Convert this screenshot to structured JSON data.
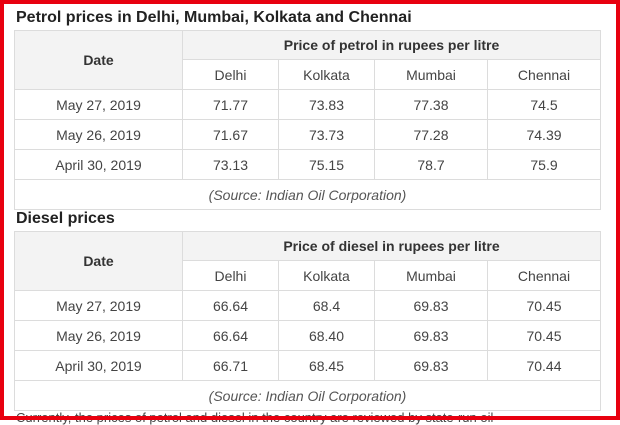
{
  "petrol": {
    "title": "Petrol prices in Delhi, Mumbai, Kolkata and Chennai",
    "date_header": "Date",
    "group_header": "Price of petrol in rupees per litre",
    "cities": [
      "Delhi",
      "Kolkata",
      "Mumbai",
      "Chennai"
    ],
    "rows": [
      {
        "date": "May 27, 2019",
        "values": [
          "71.77",
          "73.83",
          "77.38",
          "74.5"
        ]
      },
      {
        "date": "May 26, 2019",
        "values": [
          "71.67",
          "73.73",
          "77.28",
          "74.39"
        ]
      },
      {
        "date": "April 30, 2019",
        "values": [
          "73.13",
          "75.15",
          "78.7",
          "75.9"
        ]
      }
    ],
    "source": "(Source: Indian Oil Corporation)"
  },
  "diesel": {
    "title": "Diesel prices",
    "date_header": "Date",
    "group_header": "Price of diesel in rupees per litre",
    "cities": [
      "Delhi",
      "Kolkata",
      "Mumbai",
      "Chennai"
    ],
    "rows": [
      {
        "date": "May 27, 2019",
        "values": [
          "66.64",
          "68.4",
          "69.83",
          "70.45"
        ]
      },
      {
        "date": "May 26, 2019",
        "values": [
          "66.64",
          "68.40",
          "69.83",
          "70.45"
        ]
      },
      {
        "date": "April 30, 2019",
        "values": [
          "66.71",
          "68.45",
          "69.83",
          "70.44"
        ]
      }
    ],
    "source": "(Source: Indian Oil Corporation)"
  },
  "trailing_text": "Currently, the prices of petrol and diesel in the country are reviewed by state-run oil"
}
